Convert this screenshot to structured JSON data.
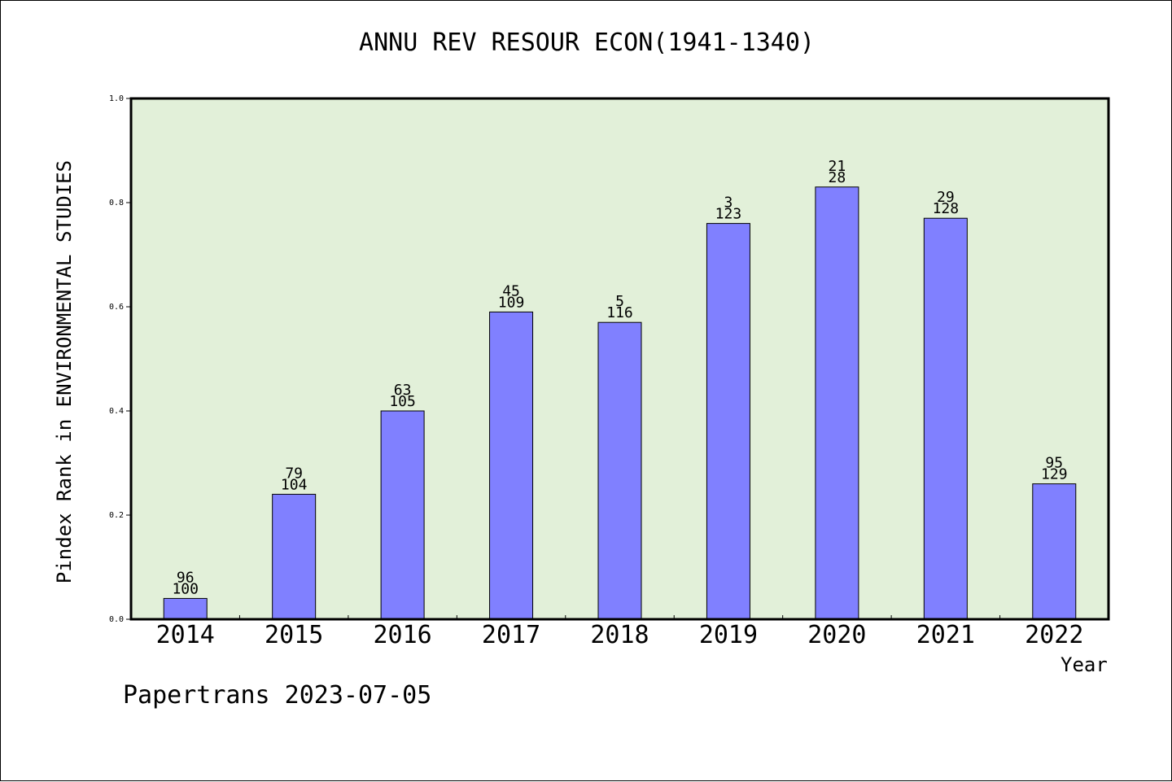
{
  "chart_data": {
    "type": "bar",
    "title": "ANNU REV RESOUR ECON(1941-1340)",
    "xlabel": "Year",
    "ylabel": "Pindex Rank in ENVIRONMENTAL STUDIES",
    "categories": [
      "2014",
      "2015",
      "2016",
      "2017",
      "2018",
      "2019",
      "2020",
      "2021",
      "2022"
    ],
    "values": [
      0.04,
      0.24,
      0.4,
      0.59,
      0.57,
      0.76,
      0.83,
      0.77,
      0.26
    ],
    "labels_top": [
      "96",
      "79",
      "63",
      "45",
      "5",
      "3",
      "21",
      "29",
      "95"
    ],
    "labels_bottom": [
      "100",
      "104",
      "105",
      "109",
      "116",
      "123",
      "28",
      "128",
      "129"
    ],
    "ylim": [
      0,
      1.0
    ],
    "yticks": [
      "0.0",
      "0.2",
      "0.4",
      "0.6",
      "0.8",
      "1.0"
    ],
    "grid": false,
    "colors": {
      "bar": "#8080ff",
      "plot_background": "#e2f0d9",
      "axis": "#000000"
    }
  },
  "footer": {
    "text": "Papertrans 2023-07-05"
  }
}
